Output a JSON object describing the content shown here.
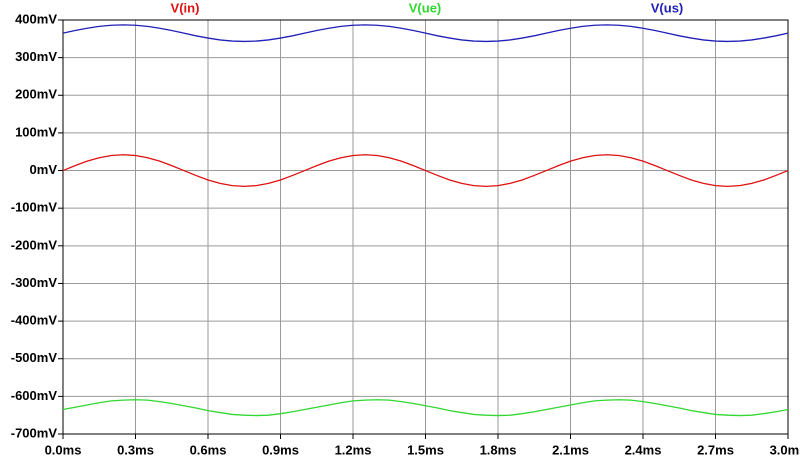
{
  "chart_data": {
    "type": "line",
    "x": [
      0,
      0.05,
      0.1,
      0.15,
      0.2,
      0.25,
      0.3,
      0.35,
      0.4,
      0.45,
      0.5,
      0.55,
      0.6,
      0.65,
      0.7,
      0.75,
      0.8,
      0.85,
      0.9,
      0.95,
      1,
      1.05,
      1.1,
      1.15,
      1.2,
      1.25,
      1.3,
      1.35,
      1.4,
      1.45,
      1.5,
      1.55,
      1.6,
      1.65,
      1.7,
      1.75,
      1.8,
      1.85,
      1.9,
      1.95,
      2,
      2.05,
      2.1,
      2.15,
      2.2,
      2.25,
      2.3,
      2.35,
      2.4,
      2.45,
      2.5,
      2.55,
      2.6,
      2.65,
      2.7,
      2.75,
      2.8,
      2.85,
      2.9,
      2.95,
      3
    ],
    "series": [
      {
        "name": "V(in)",
        "color": "#e01010",
        "values": [
          0,
          13,
          25,
          34,
          40,
          42,
          40,
          34,
          25,
          13,
          0,
          -13,
          -25,
          -34,
          -40,
          -42,
          -40,
          -34,
          -25,
          -13,
          0,
          13,
          25,
          34,
          40,
          42,
          40,
          34,
          25,
          13,
          0,
          -13,
          -25,
          -34,
          -40,
          -42,
          -40,
          -34,
          -25,
          -13,
          0,
          13,
          25,
          34,
          40,
          42,
          40,
          34,
          25,
          13,
          0,
          -13,
          -25,
          -34,
          -40,
          -42,
          -40,
          -34,
          -25,
          -13,
          0
        ]
      },
      {
        "name": "V(ue)",
        "color": "#30d830",
        "values": [
          -635,
          -629,
          -623,
          -617,
          -612,
          -610,
          -609,
          -610,
          -614,
          -619,
          -625,
          -631,
          -638,
          -643,
          -648,
          -650,
          -651,
          -650,
          -646,
          -641,
          -635,
          -629,
          -623,
          -617,
          -612,
          -610,
          -609,
          -610,
          -614,
          -619,
          -625,
          -631,
          -638,
          -643,
          -648,
          -650,
          -651,
          -650,
          -646,
          -641,
          -635,
          -629,
          -623,
          -617,
          -612,
          -610,
          -609,
          -610,
          -614,
          -619,
          -625,
          -631,
          -638,
          -643,
          -648,
          -650,
          -651,
          -650,
          -646,
          -641,
          -635
        ]
      },
      {
        "name": "V(us)",
        "color": "#2020b8",
        "values": [
          365,
          372,
          378,
          383,
          386,
          387,
          386,
          383,
          378,
          372,
          365,
          358,
          352,
          347,
          344,
          343,
          344,
          347,
          352,
          358,
          365,
          372,
          378,
          383,
          386,
          387,
          386,
          383,
          378,
          372,
          365,
          358,
          352,
          347,
          344,
          343,
          344,
          347,
          352,
          358,
          365,
          372,
          378,
          383,
          386,
          387,
          386,
          383,
          378,
          372,
          365,
          358,
          352,
          347,
          344,
          343,
          344,
          347,
          352,
          358,
          365
        ]
      }
    ],
    "xlim": [
      0,
      3
    ],
    "xticks": [
      {
        "value": 0,
        "label": "0.0ms"
      },
      {
        "value": 0.3,
        "label": "0.3ms"
      },
      {
        "value": 0.6,
        "label": "0.6ms"
      },
      {
        "value": 0.9,
        "label": "0.9ms"
      },
      {
        "value": 1.2,
        "label": "1.2ms"
      },
      {
        "value": 1.5,
        "label": "1.5ms"
      },
      {
        "value": 1.8,
        "label": "1.8ms"
      },
      {
        "value": 2.1,
        "label": "2.1ms"
      },
      {
        "value": 2.4,
        "label": "2.4ms"
      },
      {
        "value": 2.7,
        "label": "2.7ms"
      },
      {
        "value": 3,
        "label": "3.0ms"
      }
    ],
    "ylim": [
      -700,
      400
    ],
    "yticks": [
      {
        "value": 400,
        "label": "400mV"
      },
      {
        "value": 300,
        "label": "300mV"
      },
      {
        "value": 200,
        "label": "200mV"
      },
      {
        "value": 100,
        "label": "100mV"
      },
      {
        "value": 0,
        "label": "0mV"
      },
      {
        "value": -100,
        "label": "-100mV"
      },
      {
        "value": -200,
        "label": "-200mV"
      },
      {
        "value": -300,
        "label": "-300mV"
      },
      {
        "value": -400,
        "label": "-400mV"
      },
      {
        "value": -500,
        "label": "-500mV"
      },
      {
        "value": -600,
        "label": "-600mV"
      },
      {
        "value": -700,
        "label": "-700mV"
      }
    ],
    "grid": true
  }
}
